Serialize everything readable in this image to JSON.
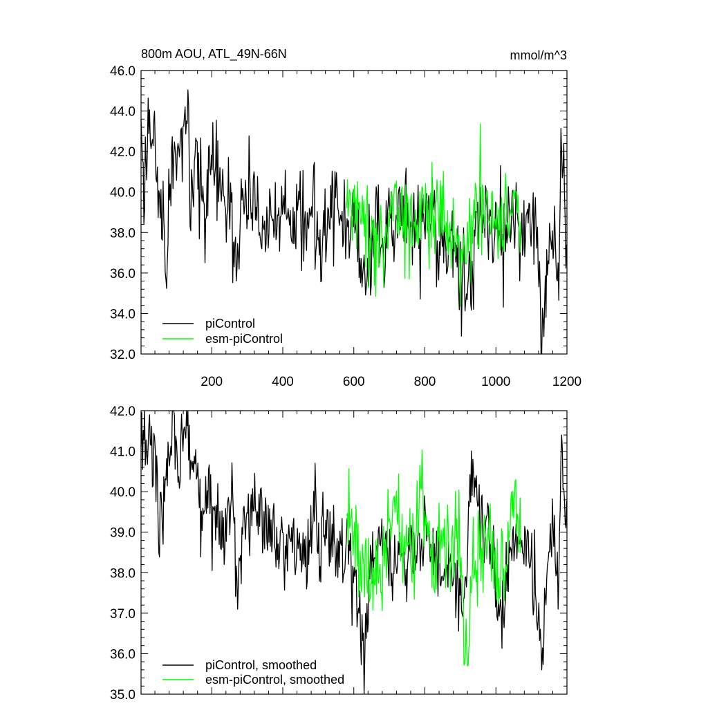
{
  "chart_data": [
    {
      "type": "line",
      "title": "800m AOU, ATL_49N-66N",
      "units": "mmol/m^3",
      "xlim": [
        1,
        1200
      ],
      "ylim": [
        32.0,
        46.0
      ],
      "x_ticks": [
        200,
        400,
        600,
        800,
        1000,
        1200
      ],
      "x_tick_labels": [
        "200",
        "400",
        "600",
        "800",
        "1000",
        "1200"
      ],
      "y_ticks": [
        32.0,
        34.0,
        36.0,
        38.0,
        40.0,
        42.0,
        44.0,
        46.0
      ],
      "y_tick_labels": [
        "32.0",
        "34.0",
        "36.0",
        "38.0",
        "40.0",
        "42.0",
        "44.0",
        "46.0"
      ],
      "legend_position": "bottom-left",
      "series": [
        {
          "name": "piControl",
          "color": "#000000",
          "x_range": [
            1,
            1200
          ],
          "anchors": [
            [
              1,
              43.6
            ],
            [
              10,
              40.2
            ],
            [
              20,
              43.2
            ],
            [
              30,
              43.9
            ],
            [
              45,
              40.5
            ],
            [
              60,
              39.5
            ],
            [
              75,
              36.6
            ],
            [
              90,
              41.5
            ],
            [
              110,
              40.8
            ],
            [
              125,
              44.2
            ],
            [
              140,
              39.5
            ],
            [
              160,
              40.5
            ],
            [
              180,
              38.8
            ],
            [
              200,
              41.2
            ],
            [
              220,
              40.2
            ],
            [
              240,
              39.0
            ],
            [
              262,
              38.5
            ],
            [
              270,
              35.5
            ],
            [
              285,
              39.6
            ],
            [
              300,
              40.0
            ],
            [
              320,
              39.2
            ],
            [
              345,
              38.3
            ],
            [
              370,
              39.6
            ],
            [
              395,
              38.8
            ],
            [
              420,
              37.2
            ],
            [
              440,
              39.0
            ],
            [
              460,
              38.4
            ],
            [
              480,
              38.7
            ],
            [
              500,
              38.7
            ],
            [
              520,
              38.5
            ],
            [
              540,
              39.3
            ],
            [
              560,
              38.8
            ],
            [
              575,
              39.0
            ],
            [
              585,
              38.6
            ],
            [
              605,
              38.2
            ],
            [
              630,
              34.8
            ],
            [
              660,
              37.8
            ],
            [
              700,
              38.5
            ],
            [
              740,
              38.5
            ],
            [
              780,
              38.3
            ],
            [
              820,
              38.4
            ],
            [
              860,
              37.5
            ],
            [
              900,
              36.7
            ],
            [
              915,
              34.6
            ],
            [
              945,
              39.0
            ],
            [
              980,
              38.2
            ],
            [
              1020,
              38.0
            ],
            [
              1060,
              38.2
            ],
            [
              1090,
              38.6
            ],
            [
              1110,
              38.5
            ],
            [
              1128,
              32.8
            ],
            [
              1150,
              37.8
            ],
            [
              1175,
              36.5
            ],
            [
              1185,
              42.0
            ],
            [
              1200,
              38.3
            ]
          ],
          "sigma": 1.5
        },
        {
          "name": "esm-piControl",
          "color": "#00ff00",
          "x_range": [
            580,
            1070
          ],
          "anchors": [
            [
              580,
              39.2
            ],
            [
              600,
              39.5
            ],
            [
              630,
              37.8
            ],
            [
              660,
              38.2
            ],
            [
              690,
              38.4
            ],
            [
              715,
              40.5
            ],
            [
              740,
              38.3
            ],
            [
              770,
              38.5
            ],
            [
              800,
              39.3
            ],
            [
              830,
              39.5
            ],
            [
              860,
              38.5
            ],
            [
              890,
              38.2
            ],
            [
              915,
              36.0
            ],
            [
              940,
              38.7
            ],
            [
              970,
              39.0
            ],
            [
              1000,
              38.2
            ],
            [
              1030,
              38.6
            ],
            [
              1055,
              40.4
            ],
            [
              1070,
              38.5
            ]
          ],
          "sigma": 1.6
        }
      ]
    },
    {
      "type": "line",
      "title": "",
      "xlim": [
        1,
        1200
      ],
      "ylim": [
        35.0,
        42.0
      ],
      "y_ticks": [
        35.0,
        36.0,
        37.0,
        38.0,
        39.0,
        40.0,
        41.0,
        42.0
      ],
      "y_tick_labels": [
        "35.0",
        "36.0",
        "37.0",
        "38.0",
        "39.0",
        "40.0",
        "41.0",
        "42.0"
      ],
      "legend_position": "bottom-left",
      "series": [
        {
          "name": "piControl, smoothed",
          "color": "#000000",
          "x_range": [
            1,
            1200
          ],
          "anchors": [
            [
              1,
              41.1
            ],
            [
              20,
              41.0
            ],
            [
              25,
              41.9
            ],
            [
              40,
              40.9
            ],
            [
              50,
              38.8
            ],
            [
              70,
              40.2
            ],
            [
              90,
              41.6
            ],
            [
              110,
              40.4
            ],
            [
              130,
              41.9
            ],
            [
              150,
              40.5
            ],
            [
              170,
              39.2
            ],
            [
              190,
              40.2
            ],
            [
              205,
              39.6
            ],
            [
              230,
              38.9
            ],
            [
              260,
              39.3
            ],
            [
              273,
              37.1
            ],
            [
              290,
              39.4
            ],
            [
              310,
              39.5
            ],
            [
              330,
              39.3
            ],
            [
              350,
              38.6
            ],
            [
              370,
              39.1
            ],
            [
              390,
              38.4
            ],
            [
              420,
              38.7
            ],
            [
              450,
              38.8
            ],
            [
              470,
              38.5
            ],
            [
              490,
              39.5
            ],
            [
              500,
              38.8
            ],
            [
              520,
              38.9
            ],
            [
              550,
              38.6
            ],
            [
              580,
              38.6
            ],
            [
              600,
              38.3
            ],
            [
              630,
              35.6
            ],
            [
              650,
              38.8
            ],
            [
              680,
              38.6
            ],
            [
              710,
              38.2
            ],
            [
              740,
              38.3
            ],
            [
              770,
              38.4
            ],
            [
              790,
              38.6
            ],
            [
              820,
              38.7
            ],
            [
              850,
              37.9
            ],
            [
              880,
              37.8
            ],
            [
              910,
              37.2
            ],
            [
              935,
              40.8
            ],
            [
              960,
              39.4
            ],
            [
              990,
              38.5
            ],
            [
              1010,
              36.9
            ],
            [
              1040,
              38.4
            ],
            [
              1070,
              38.8
            ],
            [
              1090,
              38.5
            ],
            [
              1110,
              37.6
            ],
            [
              1130,
              35.9
            ],
            [
              1160,
              39.9
            ],
            [
              1175,
              37.1
            ],
            [
              1185,
              41.4
            ],
            [
              1200,
              38.7
            ]
          ],
          "sigma": 0.65
        },
        {
          "name": "esm-piControl, smoothed",
          "color": "#00ff00",
          "x_range": [
            580,
            1070
          ],
          "anchors": [
            [
              580,
              39.4
            ],
            [
              600,
              38.9
            ],
            [
              630,
              37.4
            ],
            [
              660,
              37.7
            ],
            [
              690,
              38.5
            ],
            [
              710,
              39.8
            ],
            [
              740,
              38.6
            ],
            [
              760,
              38.2
            ],
            [
              785,
              40.0
            ],
            [
              810,
              38.9
            ],
            [
              830,
              38.4
            ],
            [
              850,
              38.9
            ],
            [
              870,
              38.2
            ],
            [
              895,
              39.2
            ],
            [
              915,
              35.6
            ],
            [
              935,
              38.1
            ],
            [
              960,
              38.6
            ],
            [
              980,
              38.8
            ],
            [
              1000,
              37.9
            ],
            [
              1020,
              37.8
            ],
            [
              1045,
              39.8
            ],
            [
              1055,
              40.7
            ],
            [
              1070,
              38.5
            ]
          ],
          "sigma": 0.7
        }
      ]
    }
  ]
}
